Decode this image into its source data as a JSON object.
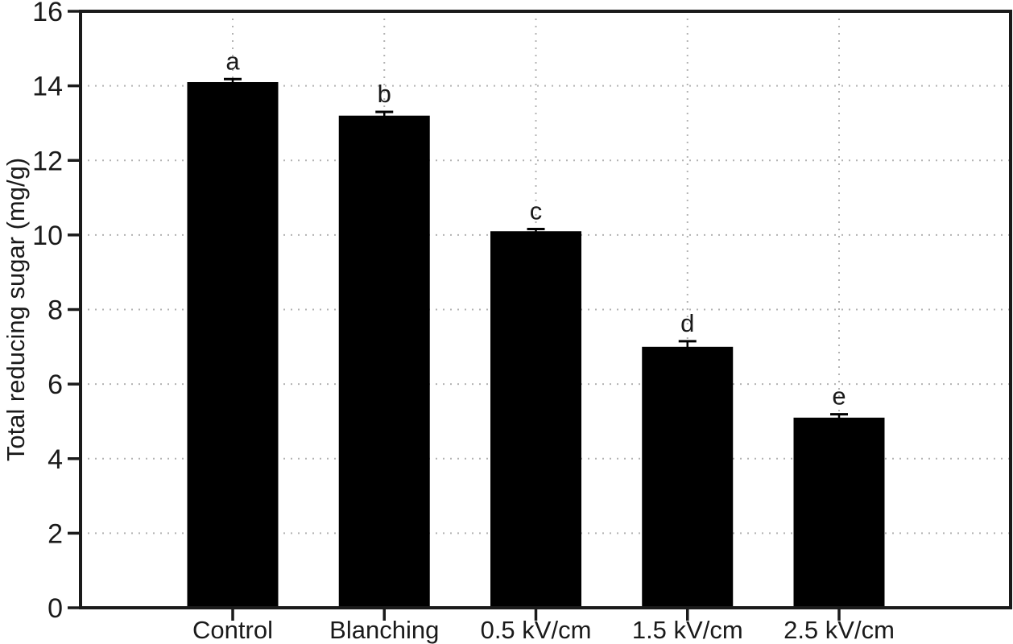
{
  "figure": {
    "background_color": "#ffffff"
  },
  "chart_data": {
    "type": "bar",
    "title": "",
    "xlabel": "",
    "ylabel": "Total reducing sugar (mg/g)",
    "categories": [
      "Control",
      "Blanching",
      "0.5 kV/cm",
      "1.5 kV/cm",
      "2.5 kV/cm"
    ],
    "values": [
      14.1,
      13.2,
      10.1,
      7.0,
      5.1
    ],
    "error_bars": [
      0.08,
      0.1,
      0.06,
      0.15,
      0.09
    ],
    "significance_letters": [
      "a",
      "b",
      "c",
      "d",
      "e"
    ],
    "ylim": [
      0,
      16
    ],
    "yticks": [
      0,
      2,
      4,
      6,
      8,
      10,
      12,
      14,
      16
    ],
    "grid": {
      "horizontal": true,
      "vertical": true,
      "style": "dotted"
    },
    "legend": {
      "visible": false
    },
    "bar_color": "#000000",
    "grid_color": "#b3b3b3",
    "axis_color": "#1a1a1a",
    "text_color": "#1a1a1a"
  }
}
